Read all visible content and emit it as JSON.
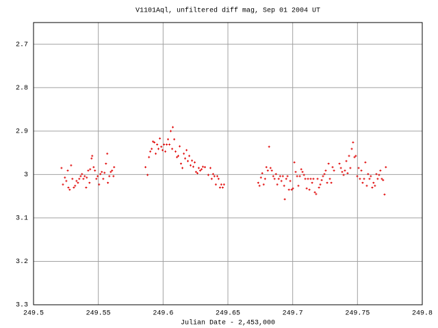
{
  "chart_data": {
    "type": "scatter",
    "title": "V1101Aql, unfiltered diff mag, Sep 01 2004 UT",
    "x_label": "Julian Date - 2,453,000",
    "color": "#e00000",
    "grid": true,
    "y_inverted": true,
    "xlim": [
      249.5,
      249.8
    ],
    "xticks": [
      249.5,
      249.55,
      249.6,
      249.65,
      249.7,
      249.75,
      249.8
    ],
    "ylim": [
      2.65,
      3.3
    ],
    "yticks": [
      2.7,
      2.8,
      2.9,
      3,
      3.1,
      3.2,
      3.3
    ],
    "x": [
      249.5216,
      249.5227,
      249.5242,
      249.5253,
      249.5264,
      249.5269,
      249.5279,
      249.529,
      249.53,
      249.5311,
      249.5321,
      249.5332,
      249.5343,
      249.5353,
      249.5364,
      249.5374,
      249.5385,
      249.5395,
      249.5406,
      249.5411,
      249.5422,
      249.5432,
      249.5437,
      249.5448,
      249.5453,
      249.5464,
      249.5474,
      249.5485,
      249.5495,
      249.5506,
      249.5516,
      249.5527,
      249.5538,
      249.5548,
      249.5559,
      249.5569,
      249.5574,
      249.5585,
      249.5596,
      249.5606,
      249.5617,
      249.5622,
      249.5864,
      249.588,
      249.5891,
      249.5901,
      249.5912,
      249.5922,
      249.5933,
      249.5943,
      249.5954,
      249.5964,
      249.5975,
      249.5986,
      249.5996,
      249.6007,
      249.6017,
      249.6028,
      249.6038,
      249.6049,
      249.6059,
      249.607,
      249.6075,
      249.6086,
      249.6096,
      249.6107,
      249.6117,
      249.6128,
      249.6138,
      249.6149,
      249.616,
      249.617,
      249.6181,
      249.6191,
      249.6202,
      249.6212,
      249.6223,
      249.6233,
      249.6244,
      249.6254,
      249.6265,
      249.6275,
      249.6286,
      249.6297,
      249.6307,
      249.6323,
      249.6349,
      249.6365,
      249.6375,
      249.6386,
      249.6396,
      249.6407,
      249.6418,
      249.6428,
      249.6439,
      249.6449,
      249.646,
      249.647,
      249.6734,
      249.6744,
      249.6755,
      249.6765,
      249.6776,
      249.6787,
      249.6797,
      249.6808,
      249.6818,
      249.6829,
      249.6839,
      249.685,
      249.686,
      249.6871,
      249.6881,
      249.6892,
      249.6903,
      249.6913,
      249.6924,
      249.6934,
      249.6939,
      249.695,
      249.696,
      249.6971,
      249.6981,
      249.6992,
      249.7002,
      249.7013,
      249.7023,
      249.7034,
      249.7044,
      249.7055,
      249.7066,
      249.7076,
      249.7087,
      249.7097,
      249.7108,
      249.7118,
      249.7129,
      249.7139,
      249.715,
      249.716,
      249.7171,
      249.7181,
      249.7192,
      249.7203,
      249.7213,
      249.7224,
      249.7234,
      249.7245,
      249.7255,
      249.7266,
      249.7277,
      249.7287,
      249.7298,
      249.7308,
      249.7319,
      249.7361,
      249.7372,
      249.7382,
      249.7393,
      249.7403,
      249.7414,
      249.7424,
      249.7435,
      249.7445,
      249.7456,
      249.7466,
      249.7477,
      249.7487,
      249.7498,
      249.7509,
      249.7519,
      249.753,
      249.754,
      249.7551,
      249.7561,
      249.7572,
      249.7582,
      249.7593,
      249.7603,
      249.7614,
      249.7624,
      249.7635,
      249.7646,
      249.7656,
      249.7667,
      249.7677,
      249.7688,
      249.7698,
      249.7709,
      249.7719
    ],
    "values": [
      2.985,
      3.023,
      3.007,
      3.015,
      2.991,
      3.03,
      3.035,
      2.979,
      3.01,
      3.03,
      3.026,
      3.015,
      3.019,
      3.01,
      3.004,
      2.999,
      3.01,
      3.004,
      3.03,
      3.007,
      2.991,
      3.019,
      2.988,
      2.963,
      2.957,
      2.983,
      2.991,
      3.01,
      3.004,
      3.023,
      2.999,
      2.994,
      3.01,
      2.996,
      2.975,
      2.952,
      3.019,
      3.004,
      2.994,
      2.991,
      3.004,
      2.983,
      2.983,
      3.001,
      2.96,
      2.947,
      2.941,
      2.924,
      2.926,
      2.952,
      2.931,
      2.941,
      2.917,
      2.936,
      2.944,
      2.931,
      2.947,
      2.931,
      2.919,
      2.931,
      2.9,
      2.941,
      2.891,
      2.919,
      2.947,
      2.96,
      2.957,
      2.935,
      2.975,
      2.985,
      2.952,
      2.963,
      2.944,
      2.969,
      2.957,
      2.979,
      2.968,
      2.982,
      2.972,
      2.994,
      2.997,
      2.985,
      2.991,
      2.988,
      2.982,
      2.983,
      3.001,
      2.985,
      3.01,
      2.999,
      3.004,
      3.023,
      3.004,
      3.01,
      3.03,
      3.023,
      3.03,
      3.023,
      3.019,
      3.026,
      3.007,
      2.997,
      3.023,
      3.01,
      2.983,
      2.991,
      2.936,
      2.985,
      2.991,
      3.004,
      3.01,
      2.999,
      3.023,
      3.01,
      3.004,
      3.015,
      3.004,
      3.026,
      3.057,
      3.01,
      3.004,
      3.035,
      3.015,
      3.035,
      3.032,
      2.972,
      2.994,
      3.004,
      3.026,
      3.004,
      2.988,
      2.994,
      3.001,
      3.01,
      3.032,
      3.01,
      3.035,
      3.01,
      3.019,
      3.01,
      3.041,
      3.045,
      3.01,
      3.03,
      3.023,
      3.013,
      3.004,
      2.999,
      2.991,
      3.019,
      2.975,
      3.01,
      3.019,
      2.983,
      2.991,
      2.975,
      2.985,
      2.994,
      3.001,
      2.991,
      2.969,
      2.997,
      2.957,
      2.985,
      2.941,
      2.926,
      2.96,
      2.957,
      3.004,
      2.985,
      3.01,
      2.991,
      3.019,
      3.01,
      2.972,
      3.026,
      2.999,
      3.01,
      3.004,
      3.03,
      3.019,
      3.026,
      2.999,
      3.01,
      3.001,
      2.991,
      3.01,
      3.013,
      3.046,
      2.983
    ]
  }
}
